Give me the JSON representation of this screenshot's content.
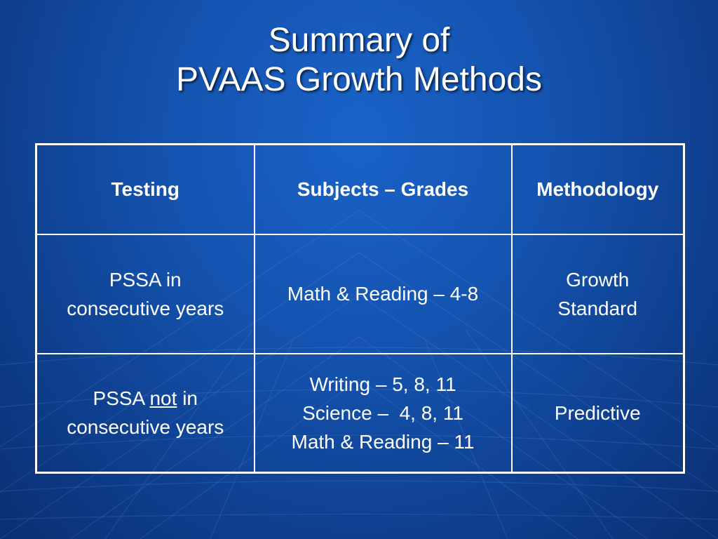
{
  "slide": {
    "title_line1": "Summary of",
    "title_line2": "PVAAS Growth Methods"
  },
  "table": {
    "headers": [
      "Testing",
      "Subjects – Grades",
      "Methodology"
    ],
    "rows": [
      {
        "testing_line1": "PSSA in",
        "testing_line2": "consecutive years",
        "subjects": [
          "Math & Reading – 4-8"
        ],
        "methodology_line1": "Growth",
        "methodology_line2": "Standard"
      },
      {
        "testing_pre": "PSSA",
        "testing_emph": "not",
        "testing_post": "in",
        "testing_line2": "consecutive years",
        "subjects": [
          "Writing – 5, 8, 11",
          "Science –  4, 8, 11",
          "Math & Reading – 11"
        ],
        "methodology": "Predictive"
      }
    ]
  },
  "colors": {
    "background": "#1452ad",
    "text": "#ffffff",
    "grid_lines": "#5f93db"
  }
}
